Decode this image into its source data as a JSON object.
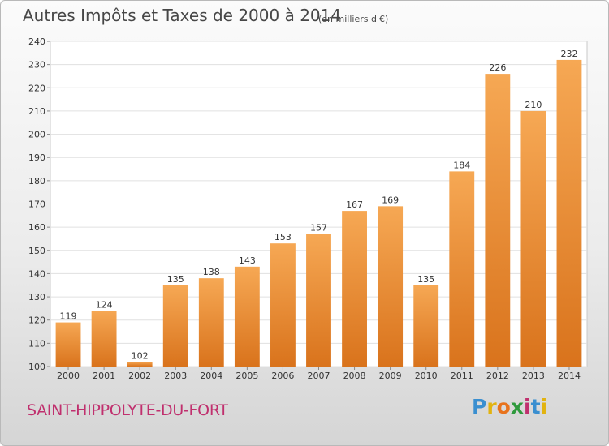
{
  "title": "Autres Impôts et Taxes de 2000 à 2014",
  "subtitle": "(en milliers d'€)",
  "town": "SAINT-HIPPOLYTE-DU-FORT",
  "logo": {
    "letters": [
      "P",
      "r",
      "o",
      "x",
      "i",
      "t",
      "i"
    ],
    "colors": [
      "#3a8fd0",
      "#e2b30f",
      "#e8731d",
      "#2f9a3d",
      "#c0306e",
      "#3a8fd0",
      "#e2b30f"
    ]
  },
  "chart_data": {
    "type": "bar",
    "categories": [
      "2000",
      "2001",
      "2002",
      "2003",
      "2004",
      "2005",
      "2006",
      "2007",
      "2008",
      "2009",
      "2010",
      "2011",
      "2012",
      "2013",
      "2014"
    ],
    "values": [
      119,
      124,
      102,
      135,
      138,
      143,
      153,
      157,
      167,
      169,
      135,
      184,
      226,
      210,
      232
    ],
    "ylim": [
      100,
      240
    ],
    "yticks": [
      100,
      110,
      120,
      130,
      140,
      150,
      160,
      170,
      180,
      190,
      200,
      210,
      220,
      230,
      240
    ],
    "grid": true,
    "bar_color": "#f0953f"
  }
}
